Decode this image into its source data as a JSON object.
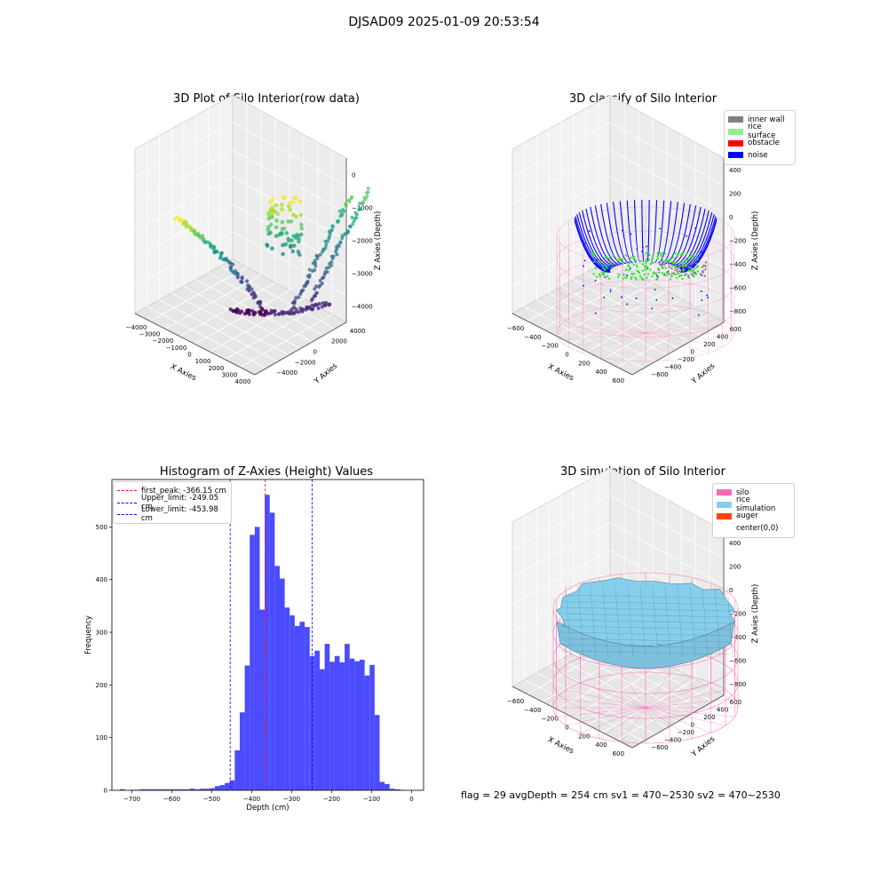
{
  "figure": {
    "suptitle": "DJSAD09 2025-01-09 20:53:54",
    "footer": "flag = 29  avgDepth = 254 cm  sv1 = 470~2530  sv2 = 470~2530"
  },
  "colors": {
    "hist": "#4b4bff",
    "first_peak": "#ff0000",
    "limits": "#0000ff",
    "inner_wall": "#808080",
    "rice_surface": "#90ee90",
    "obstacle": "#ff0000",
    "noise": "#0000ff",
    "silo": "#ff69b4",
    "rice_simulation": "#87ceeb",
    "auger": "#ff4500"
  },
  "chart_data": [
    {
      "type": "scatter",
      "title": "3D Plot of Silo Interior(row data)",
      "xlabel": "X Axies",
      "ylabel": "Y Axies",
      "zlabel": "Z Axies (Depth)",
      "xticks": [
        "−4000",
        "−3000",
        "−2000",
        "−1000",
        "0",
        "1000",
        "2000",
        "3000",
        "4000"
      ],
      "yticks": [
        "−4000",
        "−2000",
        "0",
        "2000",
        "4000"
      ],
      "zticks": [
        "0",
        "−1000",
        "−2000",
        "−3000",
        "−4000"
      ],
      "xlim": [
        -4000,
        4000
      ],
      "ylim": [
        -4000,
        4000
      ],
      "zlim": [
        -4500,
        0
      ],
      "colormap": "viridis"
    },
    {
      "type": "scatter",
      "title": "3D classify of Silo Interior",
      "xlabel": "X Axies",
      "ylabel": "Y Axies",
      "zlabel": "Z Axies (Depth)",
      "xticks": [
        "−600",
        "−400",
        "−200",
        "0",
        "200",
        "400",
        "600"
      ],
      "yticks": [
        "−600",
        "−400",
        "−200",
        "0",
        "200",
        "400",
        "600"
      ],
      "zticks": [
        "400",
        "200",
        "0",
        "−200",
        "−400",
        "−600",
        "−800"
      ],
      "legend": [
        "inner wall",
        "rice surface",
        "obstacle",
        "noise"
      ],
      "legend_position": "top-right"
    },
    {
      "type": "bar",
      "title": "Histogram of Z-Axies (Height) Values",
      "xlabel": "Depth (cm)",
      "ylabel": "Frequency",
      "xlim": [
        -750,
        30
      ],
      "ylim": [
        0,
        590
      ],
      "xticks": [
        -700,
        -600,
        -500,
        -400,
        -300,
        -200,
        -100,
        0
      ],
      "xtick_labels": [
        "−700",
        "−600",
        "−500",
        "−400",
        "−300",
        "−200",
        "−100",
        "0"
      ],
      "yticks": [
        0,
        100,
        200,
        300,
        400,
        500
      ],
      "yticks_labels": [
        "0",
        "100",
        "200",
        "300",
        "400",
        "500"
      ],
      "bin_width": 12.5,
      "bins": [
        [
          -730,
          2
        ],
        [
          -705,
          1
        ],
        [
          -692.5,
          1
        ],
        [
          -680,
          2
        ],
        [
          -667.5,
          2
        ],
        [
          -655,
          2
        ],
        [
          -642.5,
          2
        ],
        [
          -630,
          2
        ],
        [
          -617.5,
          2
        ],
        [
          -605,
          2
        ],
        [
          -592.5,
          2
        ],
        [
          -580,
          2
        ],
        [
          -567.5,
          2
        ],
        [
          -555,
          3
        ],
        [
          -542.5,
          2
        ],
        [
          -530,
          3
        ],
        [
          -517.5,
          3
        ],
        [
          -505,
          4
        ],
        [
          -492.5,
          8
        ],
        [
          -480,
          10
        ],
        [
          -467.5,
          14
        ],
        [
          -455,
          19
        ],
        [
          -442.5,
          76
        ],
        [
          -430,
          148
        ],
        [
          -417.5,
          237
        ],
        [
          -405,
          485
        ],
        [
          -392.5,
          500
        ],
        [
          -380,
          343
        ],
        [
          -367.5,
          561
        ],
        [
          -355,
          527
        ],
        [
          -342.5,
          426
        ],
        [
          -330,
          402
        ],
        [
          -317.5,
          347
        ],
        [
          -305,
          332
        ],
        [
          -292.5,
          312
        ],
        [
          -280,
          320
        ],
        [
          -267.5,
          310
        ],
        [
          -255,
          255
        ],
        [
          -242.5,
          265
        ],
        [
          -230,
          230
        ],
        [
          -217.5,
          278
        ],
        [
          -205,
          244
        ],
        [
          -192.5,
          255
        ],
        [
          -180,
          243
        ],
        [
          -167.5,
          278
        ],
        [
          -155,
          250
        ],
        [
          -142.5,
          245
        ],
        [
          -130,
          248
        ],
        [
          -117.5,
          218
        ],
        [
          -105,
          238
        ],
        [
          -92.5,
          143
        ],
        [
          -80,
          16
        ],
        [
          -67.5,
          12
        ],
        [
          -55,
          3
        ],
        [
          -42.5,
          2
        ],
        [
          -30,
          1
        ]
      ],
      "vlines": [
        {
          "label": "first_peak: -366.15 cm",
          "x": -366.15,
          "color": "#ff0000"
        },
        {
          "label": "Upper_limit: -249.05 cm",
          "x": -249.05,
          "color": "#0000ff"
        },
        {
          "label": "Lower_limit: -453.98 cm",
          "x": -453.98,
          "color": "#0000ff"
        }
      ]
    },
    {
      "type": "area",
      "title": "3D simulation of Silo Interior",
      "xlabel": "X Axies",
      "ylabel": "Y Axies",
      "zlabel": "Z Axies (Depth)",
      "xticks": [
        "−600",
        "−400",
        "−200",
        "0",
        "200",
        "400",
        "600"
      ],
      "yticks": [
        "−600",
        "−400",
        "−200",
        "0",
        "200",
        "400",
        "600"
      ],
      "zticks": [
        "400",
        "200",
        "0",
        "−200",
        "−400",
        "−600",
        "−800"
      ],
      "legend": [
        "silo",
        "rice simulation",
        "auger",
        "center(0,0)"
      ],
      "legend_position": "top-right"
    }
  ]
}
